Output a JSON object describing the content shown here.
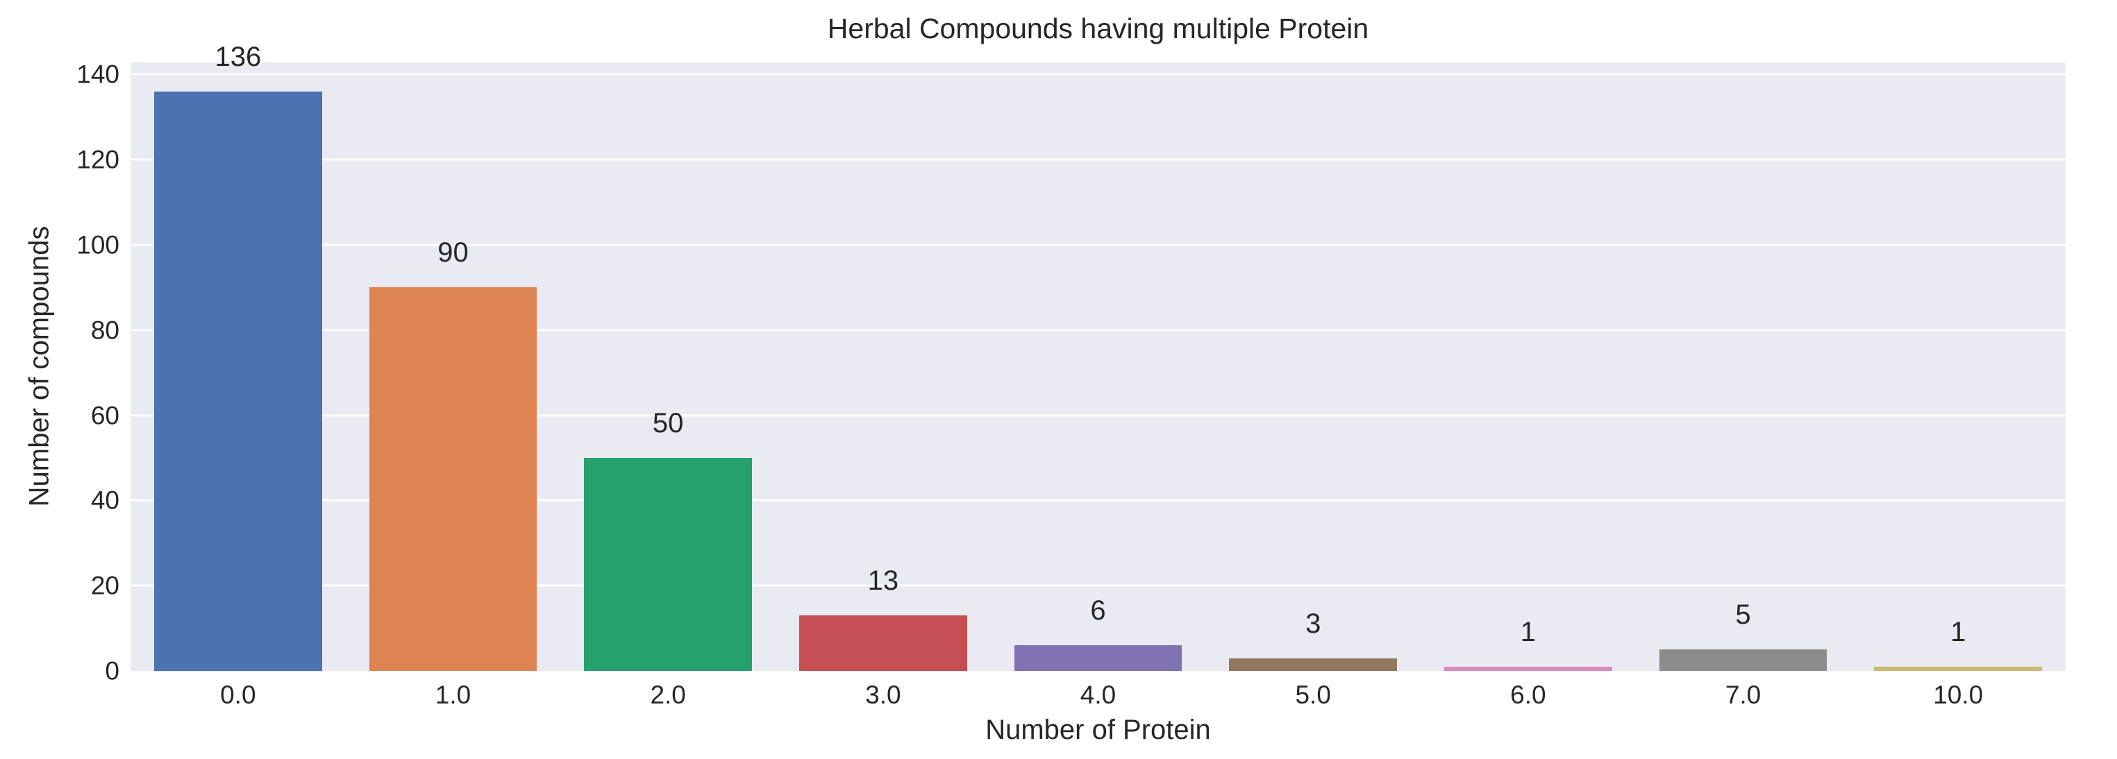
{
  "chart_data": {
    "type": "bar",
    "title": "Herbal Compounds having multiple Protein",
    "xlabel": "Number of Protein",
    "ylabel": "Number of compounds",
    "categories": [
      "0.0",
      "1.0",
      "2.0",
      "3.0",
      "4.0",
      "5.0",
      "6.0",
      "7.0",
      "10.0"
    ],
    "values": [
      136,
      90,
      50,
      13,
      6,
      3,
      1,
      5,
      1
    ],
    "bar_colors": [
      "#4c72b0",
      "#dd8452",
      "#27a16b",
      "#c44e52",
      "#8172b3",
      "#937860",
      "#da8bc3",
      "#8c8c8c",
      "#ccb974"
    ],
    "yticks": [
      0,
      20,
      40,
      60,
      80,
      100,
      120,
      140
    ],
    "ylim": [
      0,
      142.8
    ],
    "grid": "horizontal",
    "legend": "none",
    "plot_bg_color": "#eaeaf2",
    "grid_color": "#ffffff",
    "text_color": "#262626"
  }
}
